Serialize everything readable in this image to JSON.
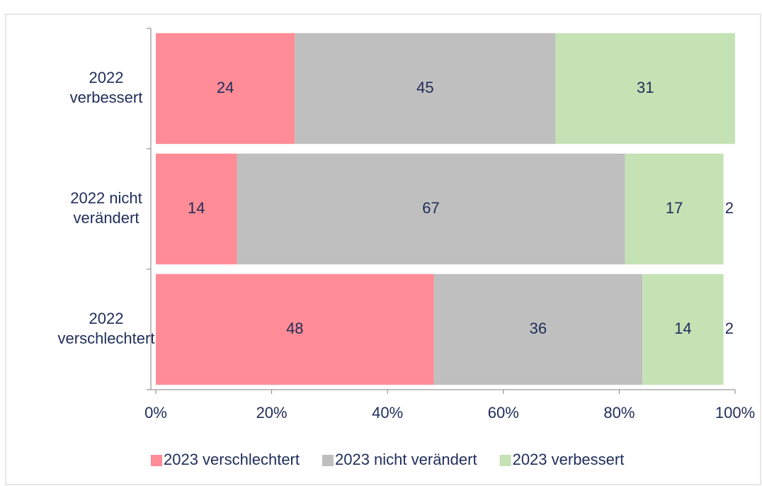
{
  "chart_data": {
    "type": "stacked_barh",
    "categories": [
      "2022\nverbessert",
      "2022 nicht\nverändert",
      "2022\nverschlechtert"
    ],
    "series": [
      {
        "name": "2023 verschlechtert",
        "color": "#ff8c96",
        "values": [
          24,
          14,
          48
        ]
      },
      {
        "name": "2023 nicht verändert",
        "color": "#bfbfbf",
        "values": [
          45,
          67,
          36
        ]
      },
      {
        "name": "2023 verbessert",
        "color": "#c4e2b4",
        "values": [
          31,
          17,
          14
        ]
      },
      {
        "color": "#ffffff",
        "values": [
          null,
          2,
          2
        ]
      }
    ],
    "xlim": [
      0,
      100
    ],
    "xticks": [
      {
        "value": 0,
        "label": "0%"
      },
      {
        "value": 20,
        "label": "20%"
      },
      {
        "value": 40,
        "label": "40%"
      },
      {
        "value": 60,
        "label": "60%"
      },
      {
        "value": 80,
        "label": "80%"
      },
      {
        "value": 100,
        "label": "100%"
      }
    ],
    "legend": "bottom"
  }
}
